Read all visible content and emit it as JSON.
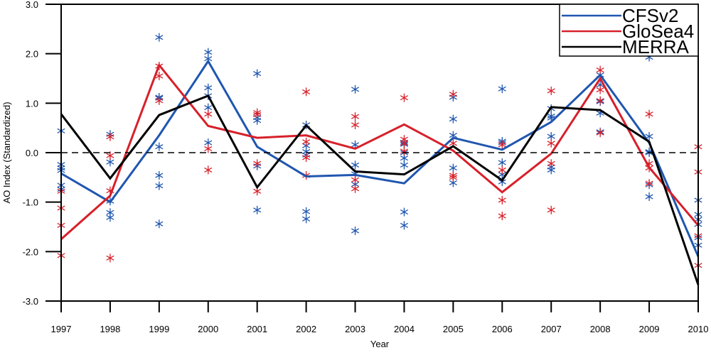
{
  "chart_data": {
    "type": "line",
    "title": "",
    "xlabel": "Year",
    "ylabel": "AO Index (Standardized)",
    "ylim": [
      -3.0,
      3.0
    ],
    "yticks": [
      "3.0",
      "2.0",
      "1.0",
      "0.0",
      "-1.0",
      "-2.0",
      "-3.0"
    ],
    "ytick_values": [
      3,
      2,
      1,
      0,
      -1,
      -2,
      -3
    ],
    "x": [
      "1997",
      "1998",
      "1999",
      "2000",
      "2001",
      "2002",
      "2003",
      "2004",
      "2005",
      "2006",
      "2007",
      "2008",
      "2009",
      "2010"
    ],
    "reference_line": {
      "y": 0,
      "style": "dashed",
      "color": "#000000"
    },
    "legend_position": "top-right",
    "series": [
      {
        "name": "CFSv2",
        "color": "#1f56b0",
        "values": [
          -0.42,
          -1.0,
          0.35,
          1.85,
          0.12,
          -0.48,
          -0.45,
          -0.62,
          0.3,
          0.06,
          0.62,
          1.57,
          0.2,
          -2.1
        ],
        "members": [
          [
            0.44,
            -0.24,
            -0.31,
            -0.36,
            -0.66,
            -0.74
          ],
          [
            0.37,
            -0.19,
            -0.98,
            -1.21,
            -1.31
          ],
          [
            2.33,
            1.12,
            1.1,
            0.12,
            -0.46,
            -0.67,
            -1.44
          ],
          [
            2.03,
            1.9,
            1.31,
            1.15,
            0.91,
            0.2
          ],
          [
            1.6,
            0.71,
            0.65,
            -0.27,
            -1.16
          ],
          [
            0.56,
            0.14,
            0.02,
            -0.05,
            -1.19,
            -1.34
          ],
          [
            1.28,
            0.16,
            -0.25,
            -0.43,
            -0.64,
            -1.58
          ],
          [
            0.21,
            0.17,
            0.0,
            -0.11,
            -0.25,
            -1.2,
            -1.47
          ],
          [
            1.12,
            0.68,
            0.35,
            -0.31,
            -0.61
          ],
          [
            1.29,
            0.23,
            0.2,
            -0.2,
            -0.44,
            -0.59
          ],
          [
            0.89,
            0.74,
            0.7,
            0.33,
            -0.29,
            -0.35
          ],
          [
            1.57,
            1.37,
            1.05,
            1.03,
            0.8,
            0.42
          ],
          [
            1.93,
            0.33,
            0.02,
            0.0,
            -0.65,
            -0.89
          ],
          [
            -0.96,
            -1.25,
            -1.35,
            -1.45,
            -1.72,
            -1.87
          ]
        ]
      },
      {
        "name": "GloSea4",
        "color": "#d7202a",
        "values": [
          -1.75,
          -0.87,
          1.77,
          0.54,
          0.3,
          0.35,
          0.08,
          0.57,
          0.04,
          -0.8,
          -0.02,
          1.5,
          -0.3,
          -1.47
        ],
        "members": [
          [
            -0.78,
            -1.12,
            -1.47,
            -2.08
          ],
          [
            0.32,
            -0.06,
            -0.77,
            -2.13
          ],
          [
            1.75,
            1.55,
            1.05
          ],
          [
            0.78,
            0.08,
            -0.35
          ],
          [
            0.81,
            0.77,
            -0.22,
            -0.78
          ],
          [
            1.23,
            0.22,
            -0.1,
            -0.46
          ],
          [
            0.73,
            0.56,
            -0.55,
            -0.73
          ],
          [
            1.11,
            0.27,
            0.19,
            0.03
          ],
          [
            1.18,
            0.19,
            -0.46,
            -0.5
          ],
          [
            0.16,
            -0.35,
            -0.96,
            -1.28
          ],
          [
            1.25,
            0.19,
            -0.22,
            -1.16
          ],
          [
            1.67,
            1.27,
            1.05,
            0.4
          ],
          [
            0.78,
            -0.22,
            -0.31,
            -0.62
          ],
          [
            0.12,
            -0.39,
            -1.68,
            -2.28
          ]
        ]
      },
      {
        "name": "MERRA",
        "color": "#000000",
        "values": [
          0.78,
          -0.52,
          0.76,
          1.15,
          -0.7,
          0.55,
          -0.38,
          -0.44,
          0.13,
          -0.56,
          0.92,
          0.86,
          0.22,
          -2.67
        ]
      }
    ],
    "grid": false
  }
}
